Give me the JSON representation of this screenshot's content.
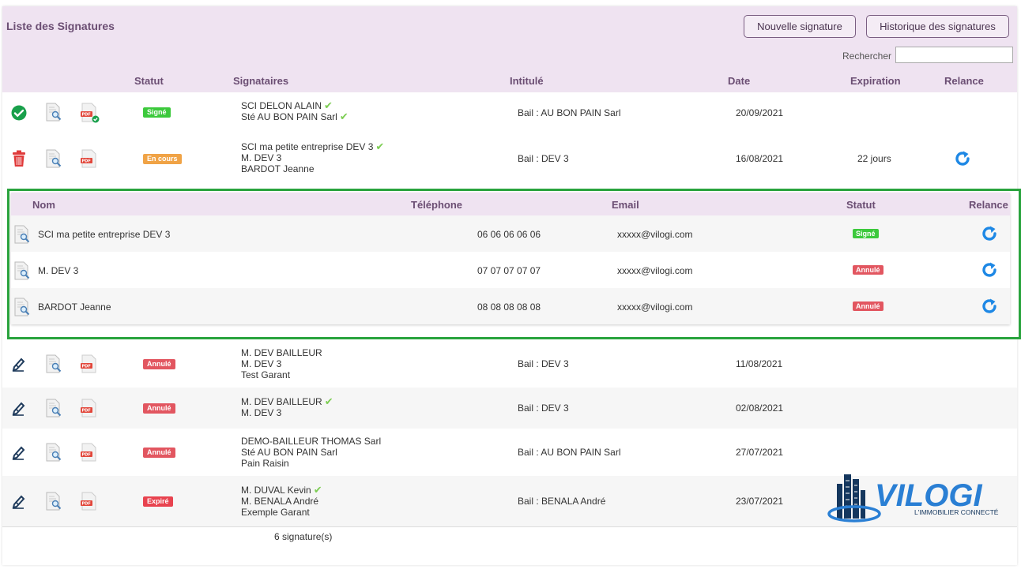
{
  "page": {
    "title": "Liste des Signatures",
    "buttons": {
      "new": "Nouvelle signature",
      "history": "Historique des signatures"
    },
    "search": {
      "label": "Rechercher",
      "value": "",
      "placeholder": ""
    }
  },
  "table": {
    "headers": {
      "status": "Statut",
      "signers": "Signataires",
      "title": "Intitulé",
      "date": "Date",
      "expiration": "Expiration",
      "reminder": "Relance"
    },
    "rows": [
      {
        "lead_icon": "check-circle-icon",
        "status": "Signé",
        "signers": [
          "SCI DELON ALAIN",
          "Sté AU BON PAIN Sarl"
        ],
        "signed": [
          true,
          true
        ],
        "title": "Bail : AU BON PAIN Sarl",
        "date": "20/09/2021",
        "expiration": "",
        "reminder": false
      },
      {
        "lead_icon": "trash-icon",
        "status": "En cours",
        "signers": [
          "SCI ma petite entreprise DEV 3",
          "M. DEV 3",
          "BARDOT Jeanne"
        ],
        "signed": [
          true,
          false,
          false
        ],
        "title": "Bail : DEV 3",
        "date": "16/08/2021",
        "expiration": "22 jours",
        "reminder": true
      },
      {
        "lead_icon": "pen-icon",
        "status": "Annulé",
        "signers": [
          "M. DEV BAILLEUR",
          "M. DEV 3",
          "Test Garant"
        ],
        "signed": [
          false,
          false,
          false
        ],
        "title": "Bail : DEV 3",
        "date": "11/08/2021",
        "expiration": "",
        "reminder": false
      },
      {
        "lead_icon": "pen-icon",
        "status": "Annulé",
        "signers": [
          "M. DEV BAILLEUR",
          "M. DEV 3"
        ],
        "signed": [
          true,
          false
        ],
        "title": "Bail : DEV 3",
        "date": "02/08/2021",
        "expiration": "",
        "reminder": false
      },
      {
        "lead_icon": "pen-icon",
        "status": "Annulé",
        "signers": [
          "DEMO-BAILLEUR THOMAS Sarl",
          "Sté AU BON PAIN Sarl",
          "Pain Raisin"
        ],
        "signed": [
          false,
          false,
          false
        ],
        "title": "Bail : AU BON PAIN Sarl",
        "date": "27/07/2021",
        "expiration": "",
        "reminder": false
      },
      {
        "lead_icon": "pen-icon",
        "status": "Expiré",
        "signers": [
          "M. DUVAL Kevin",
          "M. BENALA André",
          "Exemple Garant"
        ],
        "signed": [
          true,
          false,
          false
        ],
        "title": "Bail : BENALA André",
        "date": "23/07/2021",
        "expiration": "",
        "reminder": false
      }
    ]
  },
  "detail": {
    "headers": {
      "name": "Nom",
      "phone": "Téléphone",
      "email": "Email",
      "status": "Statut",
      "reminder": "Relance"
    },
    "rows": [
      {
        "name": "SCI ma petite entreprise DEV 3",
        "phone": "06 06 06 06 06",
        "email": "xxxxx@vilogi.com",
        "status": "Signé"
      },
      {
        "name": "M. DEV 3",
        "phone": "07 07 07 07 07",
        "email": "xxxxx@vilogi.com",
        "status": "Annulé"
      },
      {
        "name": "BARDOT Jeanne",
        "phone": "08 08 08 08 08",
        "email": "xxxxx@vilogi.com",
        "status": "Annulé"
      }
    ]
  },
  "footer": {
    "count": "6 signature(s)"
  },
  "logo": {
    "brand": "VILOGI",
    "tagline": "L'IMMOBILIER CONNECTÉ"
  },
  "colors": {
    "accent": "#6b4e73",
    "header_bg": "#efe3f1",
    "signed": "#3cc93c",
    "pending": "#f0a346",
    "cancelled": "#e25660",
    "highlight": "#29a33d",
    "reminder": "#1e88e5"
  }
}
